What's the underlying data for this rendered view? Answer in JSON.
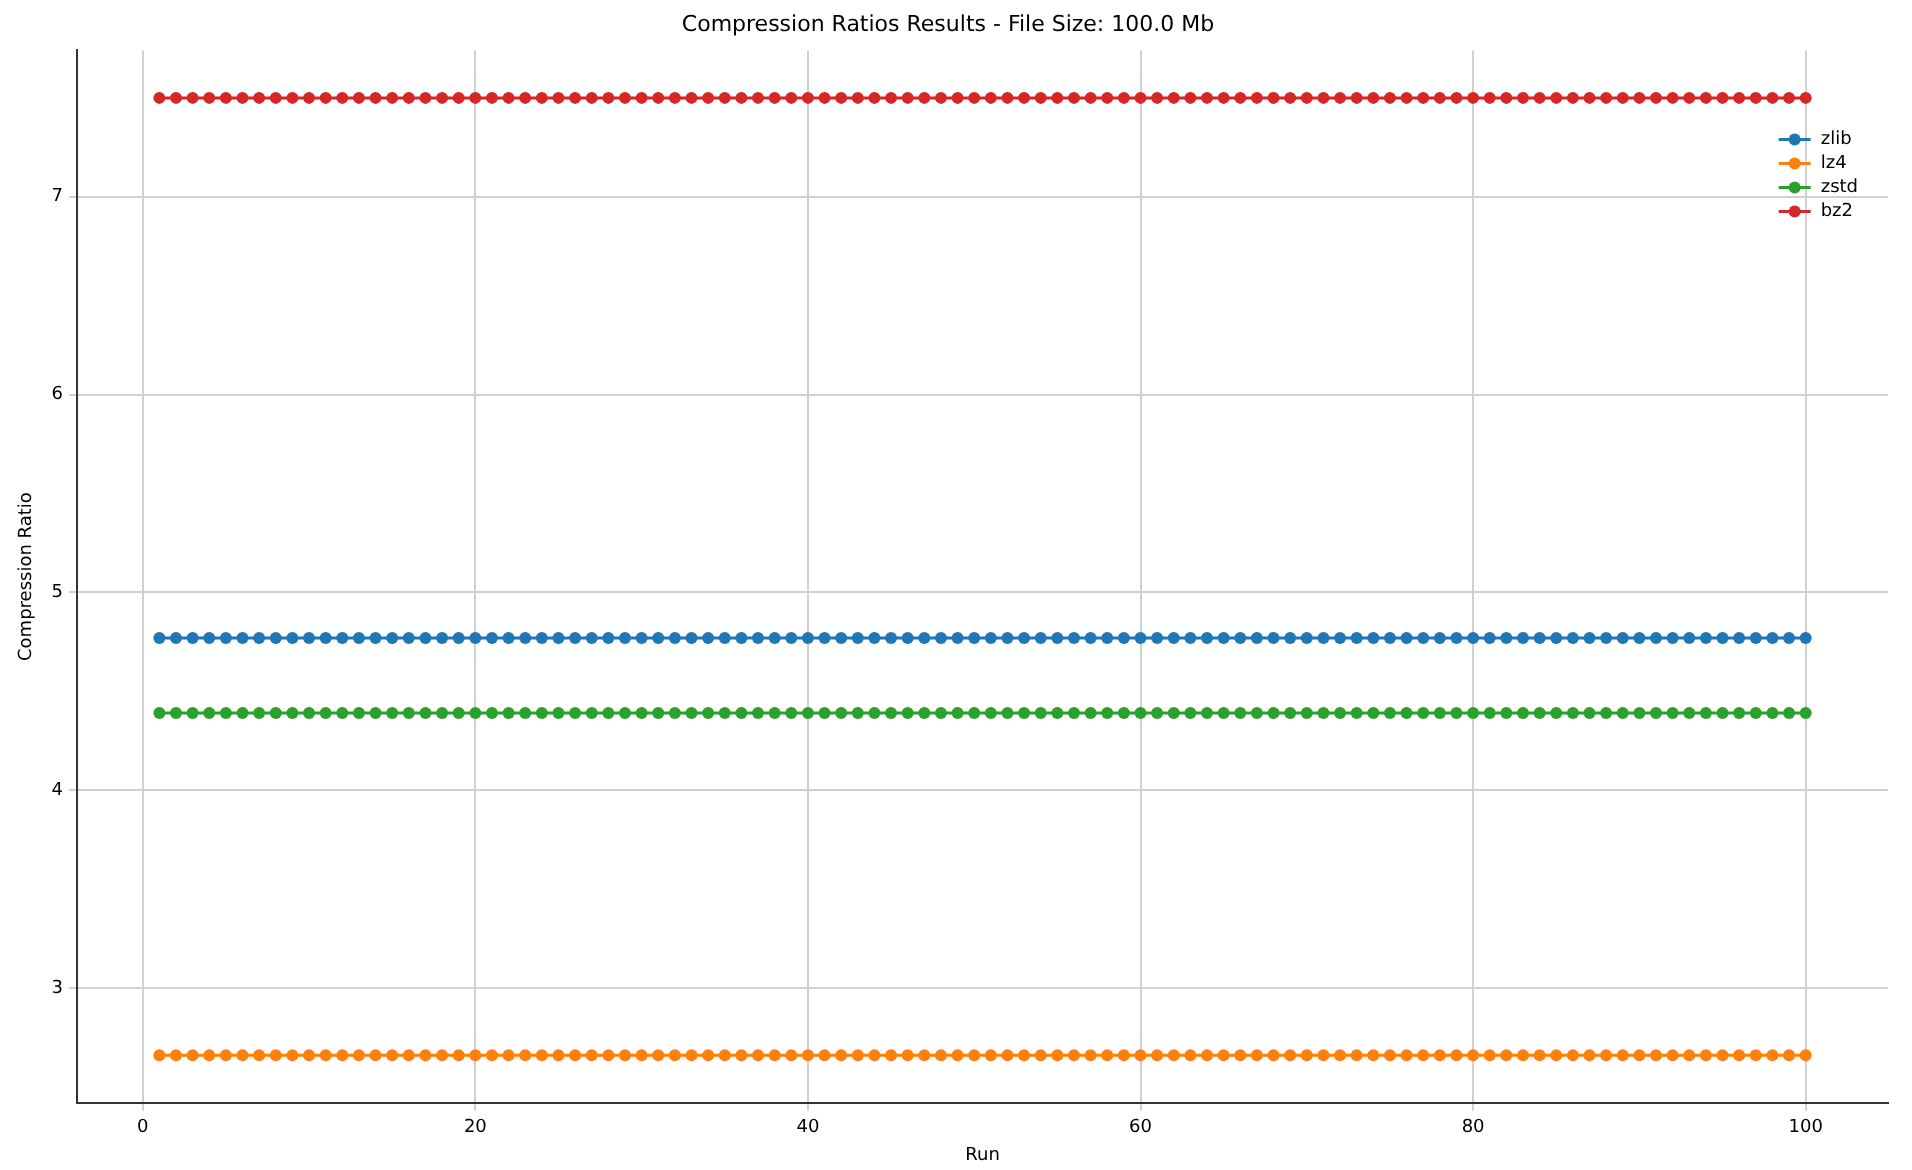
{
  "chart_data": {
    "type": "line",
    "title": "Compression Ratios Results - File Size: 100.0 Mb",
    "xlabel": "Run",
    "ylabel": "Compression Ratio",
    "x": [
      1,
      2,
      3,
      4,
      5,
      6,
      7,
      8,
      9,
      10,
      11,
      12,
      13,
      14,
      15,
      16,
      17,
      18,
      19,
      20,
      21,
      22,
      23,
      24,
      25,
      26,
      27,
      28,
      29,
      30,
      31,
      32,
      33,
      34,
      35,
      36,
      37,
      38,
      39,
      40,
      41,
      42,
      43,
      44,
      45,
      46,
      47,
      48,
      49,
      50,
      51,
      52,
      53,
      54,
      55,
      56,
      57,
      58,
      59,
      60,
      61,
      62,
      63,
      64,
      65,
      66,
      67,
      68,
      69,
      70,
      71,
      72,
      73,
      74,
      75,
      76,
      77,
      78,
      79,
      80,
      81,
      82,
      83,
      84,
      85,
      86,
      87,
      88,
      89,
      90,
      91,
      92,
      93,
      94,
      95,
      96,
      97,
      98,
      99,
      100
    ],
    "series": [
      {
        "name": "zlib",
        "color": "#1f77b4",
        "values": [
          4.77,
          4.77,
          4.77,
          4.77,
          4.77,
          4.77,
          4.77,
          4.77,
          4.77,
          4.77,
          4.77,
          4.77,
          4.77,
          4.77,
          4.77,
          4.77,
          4.77,
          4.77,
          4.77,
          4.77,
          4.77,
          4.77,
          4.77,
          4.77,
          4.77,
          4.77,
          4.77,
          4.77,
          4.77,
          4.77,
          4.77,
          4.77,
          4.77,
          4.77,
          4.77,
          4.77,
          4.77,
          4.77,
          4.77,
          4.77,
          4.77,
          4.77,
          4.77,
          4.77,
          4.77,
          4.77,
          4.77,
          4.77,
          4.77,
          4.77,
          4.77,
          4.77,
          4.77,
          4.77,
          4.77,
          4.77,
          4.77,
          4.77,
          4.77,
          4.77,
          4.77,
          4.77,
          4.77,
          4.77,
          4.77,
          4.77,
          4.77,
          4.77,
          4.77,
          4.77,
          4.77,
          4.77,
          4.77,
          4.77,
          4.77,
          4.77,
          4.77,
          4.77,
          4.77,
          4.77,
          4.77,
          4.77,
          4.77,
          4.77,
          4.77,
          4.77,
          4.77,
          4.77,
          4.77,
          4.77,
          4.77,
          4.77,
          4.77,
          4.77,
          4.77,
          4.77,
          4.77,
          4.77,
          4.77,
          4.77
        ]
      },
      {
        "name": "lz4",
        "color": "#ff7f0e",
        "values": [
          2.66,
          2.66,
          2.66,
          2.66,
          2.66,
          2.66,
          2.66,
          2.66,
          2.66,
          2.66,
          2.66,
          2.66,
          2.66,
          2.66,
          2.66,
          2.66,
          2.66,
          2.66,
          2.66,
          2.66,
          2.66,
          2.66,
          2.66,
          2.66,
          2.66,
          2.66,
          2.66,
          2.66,
          2.66,
          2.66,
          2.66,
          2.66,
          2.66,
          2.66,
          2.66,
          2.66,
          2.66,
          2.66,
          2.66,
          2.66,
          2.66,
          2.66,
          2.66,
          2.66,
          2.66,
          2.66,
          2.66,
          2.66,
          2.66,
          2.66,
          2.66,
          2.66,
          2.66,
          2.66,
          2.66,
          2.66,
          2.66,
          2.66,
          2.66,
          2.66,
          2.66,
          2.66,
          2.66,
          2.66,
          2.66,
          2.66,
          2.66,
          2.66,
          2.66,
          2.66,
          2.66,
          2.66,
          2.66,
          2.66,
          2.66,
          2.66,
          2.66,
          2.66,
          2.66,
          2.66,
          2.66,
          2.66,
          2.66,
          2.66,
          2.66,
          2.66,
          2.66,
          2.66,
          2.66,
          2.66,
          2.66,
          2.66,
          2.66,
          2.66,
          2.66,
          2.66,
          2.66,
          2.66,
          2.66,
          2.66
        ]
      },
      {
        "name": "zstd",
        "color": "#2ca02c",
        "values": [
          4.39,
          4.39,
          4.39,
          4.39,
          4.39,
          4.39,
          4.39,
          4.39,
          4.39,
          4.39,
          4.39,
          4.39,
          4.39,
          4.39,
          4.39,
          4.39,
          4.39,
          4.39,
          4.39,
          4.39,
          4.39,
          4.39,
          4.39,
          4.39,
          4.39,
          4.39,
          4.39,
          4.39,
          4.39,
          4.39,
          4.39,
          4.39,
          4.39,
          4.39,
          4.39,
          4.39,
          4.39,
          4.39,
          4.39,
          4.39,
          4.39,
          4.39,
          4.39,
          4.39,
          4.39,
          4.39,
          4.39,
          4.39,
          4.39,
          4.39,
          4.39,
          4.39,
          4.39,
          4.39,
          4.39,
          4.39,
          4.39,
          4.39,
          4.39,
          4.39,
          4.39,
          4.39,
          4.39,
          4.39,
          4.39,
          4.39,
          4.39,
          4.39,
          4.39,
          4.39,
          4.39,
          4.39,
          4.39,
          4.39,
          4.39,
          4.39,
          4.39,
          4.39,
          4.39,
          4.39,
          4.39,
          4.39,
          4.39,
          4.39,
          4.39,
          4.39,
          4.39,
          4.39,
          4.39,
          4.39,
          4.39,
          4.39,
          4.39,
          4.39,
          4.39,
          4.39,
          4.39,
          4.39,
          4.39,
          4.39
        ]
      },
      {
        "name": "bz2",
        "color": "#d62728",
        "values": [
          7.5,
          7.5,
          7.5,
          7.5,
          7.5,
          7.5,
          7.5,
          7.5,
          7.5,
          7.5,
          7.5,
          7.5,
          7.5,
          7.5,
          7.5,
          7.5,
          7.5,
          7.5,
          7.5,
          7.5,
          7.5,
          7.5,
          7.5,
          7.5,
          7.5,
          7.5,
          7.5,
          7.5,
          7.5,
          7.5,
          7.5,
          7.5,
          7.5,
          7.5,
          7.5,
          7.5,
          7.5,
          7.5,
          7.5,
          7.5,
          7.5,
          7.5,
          7.5,
          7.5,
          7.5,
          7.5,
          7.5,
          7.5,
          7.5,
          7.5,
          7.5,
          7.5,
          7.5,
          7.5,
          7.5,
          7.5,
          7.5,
          7.5,
          7.5,
          7.5,
          7.5,
          7.5,
          7.5,
          7.5,
          7.5,
          7.5,
          7.5,
          7.5,
          7.5,
          7.5,
          7.5,
          7.5,
          7.5,
          7.5,
          7.5,
          7.5,
          7.5,
          7.5,
          7.5,
          7.5,
          7.5,
          7.5,
          7.5,
          7.5,
          7.5,
          7.5,
          7.5,
          7.5,
          7.5,
          7.5,
          7.5,
          7.5,
          7.5,
          7.5,
          7.5,
          7.5,
          7.5,
          7.5,
          7.5,
          7.5
        ]
      }
    ],
    "xlim": [
      -3.95,
      104.95
    ],
    "xticks": [
      0,
      20,
      40,
      60,
      80,
      100
    ],
    "ylim": [
      2.42,
      7.74
    ],
    "yticks": [
      3,
      4,
      5,
      6,
      7
    ],
    "grid": true,
    "legend": "top right",
    "marker": "circle",
    "line_style": "solid"
  }
}
